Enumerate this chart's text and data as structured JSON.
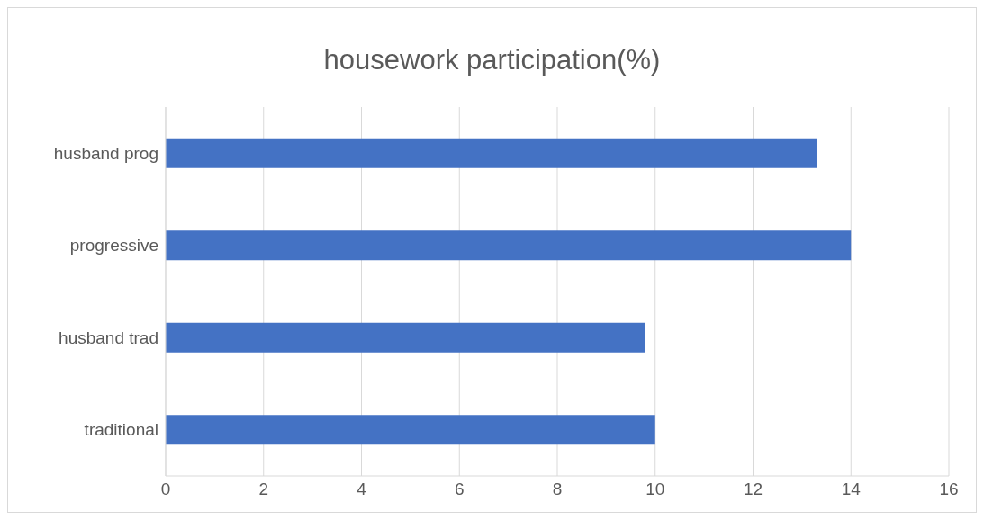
{
  "chart_data": {
    "type": "bar",
    "orientation": "horizontal",
    "title": "housework participation(%)",
    "categories": [
      "husband prog",
      "progressive",
      "husband trad",
      "traditional"
    ],
    "values": [
      13.3,
      14.0,
      9.8,
      10.0
    ],
    "color": "#4472c4",
    "xlim": [
      0,
      16
    ],
    "xticks": [
      0,
      2,
      4,
      6,
      8,
      10,
      12,
      14,
      16
    ],
    "grid": "x",
    "legend": false
  }
}
